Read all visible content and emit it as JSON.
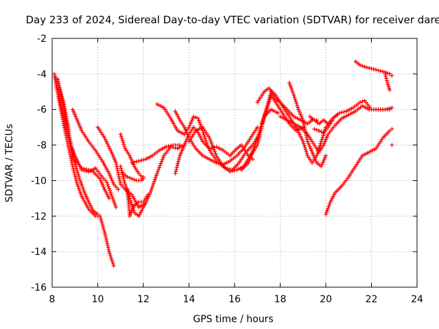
{
  "chart_data": {
    "type": "scatter",
    "title": "Day 233 of 2024, Sidereal Day-to-day VTEC variation (SDTVAR) for receiver dare",
    "xlabel": "GPS time / hours",
    "ylabel": "SDTVAR / TECUs",
    "xlim": [
      8,
      24
    ],
    "ylim": [
      -16,
      -2
    ],
    "xticks": [
      8,
      10,
      12,
      14,
      16,
      18,
      20,
      22,
      24
    ],
    "yticks": [
      -16,
      -14,
      -12,
      -10,
      -8,
      -6,
      -4,
      -2
    ],
    "grid": true,
    "marker": "plus",
    "color": "#ff0000",
    "series": [
      {
        "points": [
          [
            8.1,
            -4.0
          ],
          [
            8.2,
            -4.8
          ],
          [
            8.4,
            -5.8
          ],
          [
            8.6,
            -7.0
          ],
          [
            8.8,
            -8.0
          ],
          [
            9.0,
            -8.6
          ],
          [
            9.3,
            -9.4
          ],
          [
            9.6,
            -9.5
          ],
          [
            9.9,
            -9.3
          ],
          [
            10.2,
            -9.8
          ],
          [
            10.4,
            -10.1
          ],
          [
            10.6,
            -10.8
          ],
          [
            10.8,
            -11.5
          ]
        ]
      },
      {
        "points": [
          [
            8.15,
            -4.2
          ],
          [
            8.3,
            -5.5
          ],
          [
            8.5,
            -6.8
          ],
          [
            8.7,
            -8.0
          ],
          [
            8.9,
            -9.2
          ],
          [
            9.1,
            -10.2
          ],
          [
            9.3,
            -10.9
          ],
          [
            9.6,
            -11.6
          ],
          [
            9.9,
            -12.0
          ],
          [
            10.1,
            -12.0
          ],
          [
            10.3,
            -12.9
          ],
          [
            10.5,
            -14.0
          ],
          [
            10.7,
            -14.8
          ]
        ]
      },
      {
        "points": [
          [
            8.25,
            -4.3
          ],
          [
            8.4,
            -5.2
          ],
          [
            8.6,
            -6.5
          ],
          [
            8.8,
            -7.8
          ],
          [
            9.0,
            -9.0
          ],
          [
            9.2,
            -9.9
          ],
          [
            9.4,
            -10.6
          ],
          [
            9.6,
            -11.2
          ],
          [
            9.8,
            -11.7
          ],
          [
            10.0,
            -11.9
          ]
        ]
      },
      {
        "points": [
          [
            8.3,
            -4.8
          ],
          [
            8.5,
            -5.6
          ],
          [
            8.7,
            -7.0
          ],
          [
            8.9,
            -8.8
          ],
          [
            9.1,
            -9.0
          ],
          [
            9.3,
            -9.3
          ],
          [
            9.6,
            -9.4
          ],
          [
            9.8,
            -9.5
          ],
          [
            10.1,
            -9.9
          ],
          [
            10.3,
            -10.5
          ],
          [
            10.5,
            -11.0
          ]
        ]
      },
      {
        "points": [
          [
            8.9,
            -6.0
          ],
          [
            9.1,
            -6.6
          ],
          [
            9.3,
            -7.2
          ],
          [
            9.6,
            -7.8
          ],
          [
            9.9,
            -8.3
          ],
          [
            10.2,
            -8.9
          ],
          [
            10.5,
            -9.6
          ],
          [
            10.7,
            -10.2
          ],
          [
            10.9,
            -10.5
          ]
        ]
      },
      {
        "points": [
          [
            10.0,
            -7.0
          ],
          [
            10.3,
            -7.6
          ],
          [
            10.6,
            -8.4
          ],
          [
            10.8,
            -9.0
          ],
          [
            11.0,
            -10.2
          ],
          [
            11.2,
            -10.5
          ],
          [
            11.5,
            -10.8
          ],
          [
            11.8,
            -11.5
          ],
          [
            12.1,
            -11.3
          ]
        ]
      },
      {
        "points": [
          [
            11.0,
            -7.4
          ],
          [
            11.2,
            -8.2
          ],
          [
            11.4,
            -8.6
          ],
          [
            11.6,
            -9.2
          ],
          [
            11.8,
            -9.6
          ],
          [
            12.0,
            -9.9
          ]
        ]
      },
      {
        "points": [
          [
            11.0,
            -9.2
          ],
          [
            11.2,
            -10.2
          ],
          [
            11.4,
            -11.0
          ],
          [
            11.6,
            -11.8
          ],
          [
            11.8,
            -12.0
          ],
          [
            12.0,
            -11.5
          ],
          [
            12.3,
            -10.7
          ],
          [
            12.6,
            -9.6
          ],
          [
            12.9,
            -8.6
          ],
          [
            13.2,
            -8.1
          ],
          [
            13.5,
            -8.2
          ],
          [
            13.8,
            -8.0
          ]
        ]
      },
      {
        "points": [
          [
            11.3,
            -10.5
          ],
          [
            11.4,
            -12.0
          ],
          [
            11.6,
            -11.4
          ],
          [
            11.8,
            -11.2
          ],
          [
            12.0,
            -11.2
          ],
          [
            12.2,
            -10.8
          ]
        ]
      },
      {
        "points": [
          [
            11.1,
            -9.6
          ],
          [
            11.3,
            -9.8
          ],
          [
            11.5,
            -9.9
          ],
          [
            11.7,
            -10.0
          ],
          [
            11.9,
            -10.0
          ],
          [
            12.0,
            -9.8
          ]
        ]
      },
      {
        "points": [
          [
            11.5,
            -9.0
          ],
          [
            11.8,
            -8.9
          ],
          [
            12.1,
            -8.8
          ],
          [
            12.4,
            -8.6
          ],
          [
            12.7,
            -8.3
          ],
          [
            13.0,
            -8.1
          ],
          [
            13.3,
            -8.0
          ],
          [
            13.6,
            -8.0
          ]
        ]
      },
      {
        "points": [
          [
            12.6,
            -5.7
          ],
          [
            12.9,
            -5.9
          ],
          [
            13.2,
            -6.5
          ],
          [
            13.5,
            -7.2
          ],
          [
            13.8,
            -7.4
          ],
          [
            14.0,
            -7.0
          ],
          [
            14.2,
            -6.4
          ],
          [
            14.4,
            -6.5
          ],
          [
            14.6,
            -7.2
          ],
          [
            14.8,
            -8.0
          ],
          [
            15.0,
            -8.5
          ],
          [
            15.3,
            -9.0
          ],
          [
            15.6,
            -9.3
          ],
          [
            15.9,
            -9.4
          ],
          [
            16.2,
            -9.0
          ],
          [
            16.5,
            -8.4
          ],
          [
            16.8,
            -8.0
          ],
          [
            17.0,
            -7.6
          ]
        ]
      },
      {
        "points": [
          [
            13.4,
            -6.1
          ],
          [
            13.6,
            -6.6
          ],
          [
            13.8,
            -7.0
          ],
          [
            14.0,
            -7.6
          ],
          [
            14.3,
            -8.2
          ],
          [
            14.6,
            -8.6
          ],
          [
            14.9,
            -8.8
          ],
          [
            15.2,
            -9.0
          ],
          [
            15.5,
            -9.1
          ],
          [
            15.8,
            -8.9
          ],
          [
            16.1,
            -8.6
          ],
          [
            16.4,
            -8.2
          ],
          [
            16.7,
            -7.6
          ],
          [
            17.0,
            -7.0
          ]
        ]
      },
      {
        "points": [
          [
            13.4,
            -9.6
          ],
          [
            13.6,
            -8.6
          ],
          [
            13.8,
            -8.0
          ],
          [
            14.0,
            -7.4
          ],
          [
            14.2,
            -7.0
          ],
          [
            14.4,
            -7.3
          ],
          [
            14.6,
            -7.8
          ],
          [
            14.9,
            -8.2
          ],
          [
            15.2,
            -8.1
          ],
          [
            15.5,
            -8.3
          ],
          [
            15.8,
            -8.6
          ],
          [
            16.1,
            -8.2
          ],
          [
            16.3,
            -8.0
          ],
          [
            16.6,
            -8.6
          ],
          [
            16.8,
            -8.8
          ]
        ]
      },
      {
        "points": [
          [
            14.0,
            -7.8
          ],
          [
            14.3,
            -7.2
          ],
          [
            14.6,
            -7.0
          ],
          [
            14.9,
            -7.6
          ],
          [
            15.2,
            -8.6
          ],
          [
            15.5,
            -9.2
          ],
          [
            15.8,
            -9.5
          ],
          [
            16.1,
            -9.4
          ],
          [
            16.4,
            -9.2
          ],
          [
            16.7,
            -8.6
          ],
          [
            17.0,
            -8.0
          ],
          [
            17.3,
            -6.4
          ],
          [
            17.6,
            -6.0
          ],
          [
            17.9,
            -6.2
          ]
        ]
      },
      {
        "points": [
          [
            16.3,
            -9.4
          ],
          [
            16.6,
            -9.0
          ],
          [
            16.9,
            -8.0
          ],
          [
            17.1,
            -7.2
          ],
          [
            17.3,
            -6.4
          ],
          [
            17.6,
            -5.2
          ],
          [
            17.8,
            -5.6
          ],
          [
            18.1,
            -6.2
          ],
          [
            18.4,
            -6.8
          ],
          [
            18.7,
            -7.2
          ],
          [
            19.0,
            -7.0
          ]
        ]
      },
      {
        "points": [
          [
            17.2,
            -6.8
          ],
          [
            17.4,
            -6.0
          ],
          [
            17.6,
            -5.0
          ],
          [
            17.8,
            -5.4
          ],
          [
            18.0,
            -5.6
          ],
          [
            18.3,
            -6.0
          ],
          [
            18.6,
            -6.4
          ],
          [
            18.9,
            -6.6
          ],
          [
            19.2,
            -6.8
          ],
          [
            19.4,
            -6.6
          ],
          [
            19.6,
            -6.6
          ]
        ]
      },
      {
        "points": [
          [
            17.0,
            -5.6
          ],
          [
            17.3,
            -5.0
          ],
          [
            17.5,
            -4.8
          ],
          [
            17.8,
            -5.2
          ],
          [
            18.1,
            -5.8
          ],
          [
            18.4,
            -6.4
          ],
          [
            18.7,
            -7.0
          ],
          [
            19.0,
            -7.8
          ],
          [
            19.2,
            -8.6
          ],
          [
            19.4,
            -9.0
          ],
          [
            19.6,
            -8.6
          ],
          [
            19.8,
            -7.8
          ],
          [
            20.0,
            -7.0
          ],
          [
            20.3,
            -6.5
          ],
          [
            20.6,
            -6.2
          ],
          [
            20.9,
            -6.1
          ],
          [
            21.2,
            -5.9
          ],
          [
            21.5,
            -5.6
          ],
          [
            21.7,
            -5.5
          ],
          [
            22.0,
            -6.0
          ],
          [
            22.3,
            -6.0
          ],
          [
            22.6,
            -6.0
          ],
          [
            22.9,
            -5.9
          ]
        ]
      },
      {
        "points": [
          [
            18.4,
            -4.5
          ],
          [
            18.6,
            -5.2
          ],
          [
            18.8,
            -6.0
          ],
          [
            19.0,
            -6.6
          ],
          [
            19.2,
            -7.8
          ],
          [
            19.4,
            -8.4
          ],
          [
            19.6,
            -9.0
          ],
          [
            19.8,
            -9.2
          ],
          [
            20.0,
            -8.6
          ]
        ]
      },
      {
        "points": [
          [
            18.0,
            -6.4
          ],
          [
            18.3,
            -6.6
          ],
          [
            18.6,
            -6.8
          ],
          [
            18.9,
            -7.0
          ],
          [
            19.2,
            -7.4
          ],
          [
            19.5,
            -8.0
          ],
          [
            19.7,
            -8.4
          ],
          [
            19.9,
            -8.0
          ],
          [
            20.1,
            -7.4
          ],
          [
            20.4,
            -6.9
          ],
          [
            20.7,
            -6.5
          ],
          [
            21.0,
            -6.3
          ],
          [
            21.3,
            -6.1
          ],
          [
            21.6,
            -5.8
          ],
          [
            21.9,
            -6.0
          ],
          [
            22.2,
            -6.0
          ],
          [
            22.5,
            -6.0
          ],
          [
            22.8,
            -6.0
          ]
        ]
      },
      {
        "points": [
          [
            19.3,
            -6.4
          ],
          [
            19.5,
            -6.6
          ],
          [
            19.7,
            -6.8
          ],
          [
            19.9,
            -6.6
          ],
          [
            20.1,
            -6.8
          ],
          [
            20.3,
            -6.5
          ],
          [
            20.5,
            -6.3
          ]
        ]
      },
      {
        "points": [
          [
            19.5,
            -7.1
          ],
          [
            19.7,
            -7.2
          ],
          [
            19.9,
            -7.3
          ],
          [
            20.1,
            -7.0
          ],
          [
            20.3,
            -6.6
          ]
        ]
      },
      {
        "points": [
          [
            20.0,
            -11.9
          ],
          [
            20.2,
            -11.2
          ],
          [
            20.4,
            -10.7
          ],
          [
            20.7,
            -10.3
          ],
          [
            21.0,
            -9.8
          ],
          [
            21.3,
            -9.2
          ],
          [
            21.6,
            -8.6
          ],
          [
            21.9,
            -8.4
          ],
          [
            22.2,
            -8.2
          ],
          [
            22.5,
            -7.6
          ],
          [
            22.8,
            -7.2
          ],
          [
            22.9,
            -7.1
          ]
        ]
      },
      {
        "points": [
          [
            21.3,
            -3.3
          ],
          [
            21.5,
            -3.5
          ],
          [
            21.7,
            -3.6
          ],
          [
            22.0,
            -3.7
          ],
          [
            22.3,
            -3.8
          ],
          [
            22.6,
            -3.9
          ],
          [
            22.8,
            -4.0
          ],
          [
            22.9,
            -4.1
          ]
        ]
      },
      {
        "points": [
          [
            22.6,
            -4.0
          ],
          [
            22.7,
            -4.5
          ],
          [
            22.8,
            -4.9
          ]
        ]
      },
      {
        "points": [
          [
            22.9,
            -8.0
          ]
        ]
      }
    ]
  }
}
